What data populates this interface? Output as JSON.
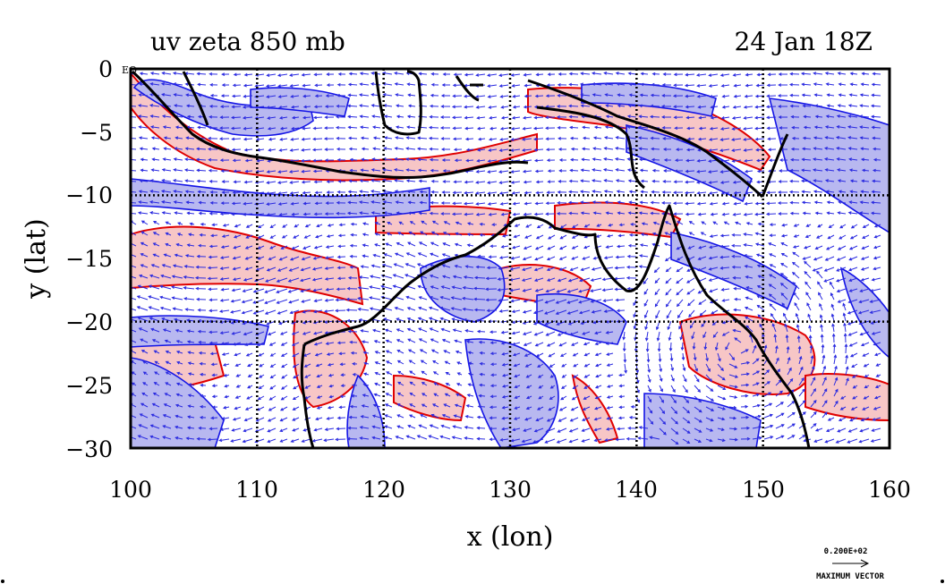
{
  "title_left": "uv zeta 850 mb",
  "title_right": "24 Jan 18Z",
  "eq_label": "EQ",
  "xlabel": "x (lon)",
  "ylabel": "y (lat)",
  "x_ticks": [
    "100",
    "110",
    "120",
    "130",
    "140",
    "150",
    "160"
  ],
  "y_ticks": [
    "0",
    "−5",
    "−10",
    "−15",
    "−20",
    "−25",
    "−30"
  ],
  "vector_legend": {
    "value": "0.200E+02",
    "label": "MAXIMUM VECTOR"
  },
  "colors": {
    "positive_fill": "#f7c6c6",
    "positive_contour": "#e00000",
    "negative_fill": "#b8b8f0",
    "negative_contour": "#1414e6",
    "vector": "#2a2ae0",
    "coast": "#000000"
  },
  "map": {
    "lon_range": [
      100,
      160
    ],
    "lat_range": [
      -30,
      0
    ],
    "grid_lons": [
      110,
      120,
      130,
      140,
      150
    ],
    "grid_lats": [
      -10,
      -20
    ]
  }
}
